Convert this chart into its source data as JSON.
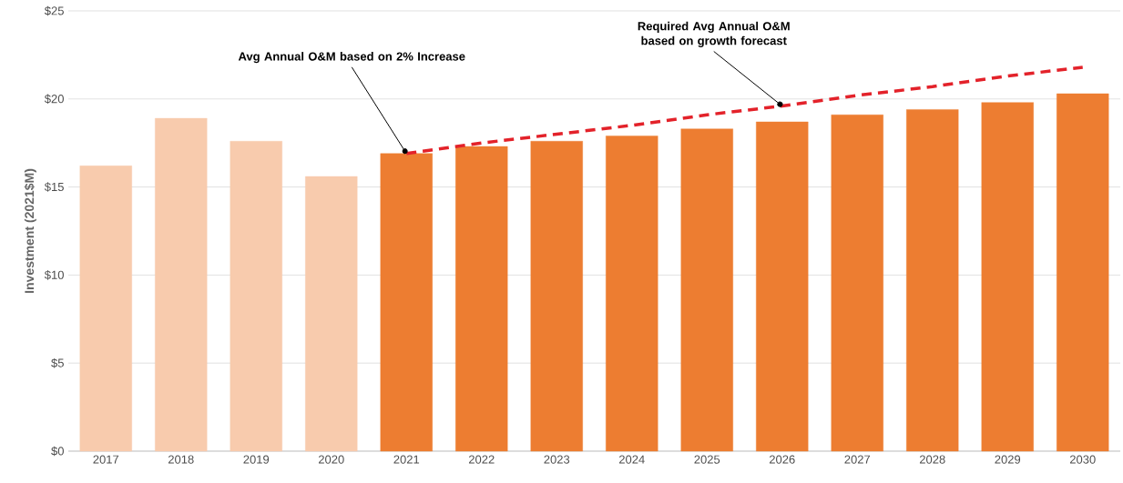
{
  "chart_data": {
    "type": "bar",
    "ylabel": "Investment (2021$M)",
    "categories": [
      "2017",
      "2018",
      "2019",
      "2020",
      "2021",
      "2022",
      "2023",
      "2024",
      "2025",
      "2026",
      "2027",
      "2028",
      "2029",
      "2030"
    ],
    "series": [
      {
        "colors": [
          "#f8cbad",
          "#f8cbad",
          "#f8cbad",
          "#f8cbad",
          "#ed7d31",
          "#ed7d31",
          "#ed7d31",
          "#ed7d31",
          "#ed7d31",
          "#ed7d31",
          "#ed7d31",
          "#ed7d31",
          "#ed7d31",
          "#ed7d31"
        ],
        "values": [
          16.2,
          18.9,
          17.6,
          15.6,
          16.9,
          17.3,
          17.6,
          17.9,
          18.3,
          18.7,
          19.1,
          19.4,
          19.8,
          20.3
        ]
      },
      {
        "type": "line",
        "color": "#e3222a",
        "line_style": "dashed",
        "values": [
          null,
          null,
          null,
          null,
          16.9,
          17.5,
          18.0,
          18.5,
          19.1,
          19.6,
          20.2,
          20.7,
          21.3,
          21.8
        ]
      }
    ],
    "ylim": [
      0,
      25
    ],
    "yticks": [
      {
        "value": 0,
        "label": "$0"
      },
      {
        "value": 5,
        "label": "$5"
      },
      {
        "value": 10,
        "label": "$10"
      },
      {
        "value": 15,
        "label": "$15"
      },
      {
        "value": 20,
        "label": "$20"
      },
      {
        "value": 25,
        "label": "$25"
      }
    ],
    "grid": "y",
    "annotations": [
      {
        "text": "Avg Annual O&M based on 2% Increase",
        "x": "2021",
        "y": 16.9
      },
      {
        "text": "Required Avg Annual O&M based on growth forecast",
        "x": "2026",
        "y": 19.6
      }
    ]
  }
}
